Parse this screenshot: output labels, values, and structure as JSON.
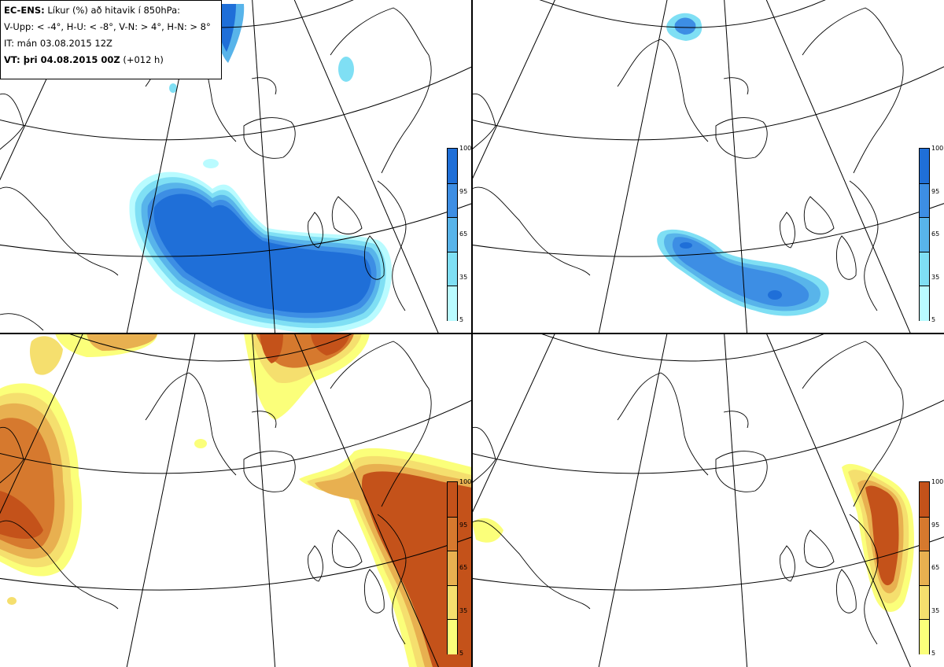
{
  "info": {
    "model": "EC-ENS:",
    "desc": "Líkur (%) að hitavik í 850hPa:",
    "classes": "V-Upp: < -4°, H-U: < -8°, V-N: > 4°, H-N: > 8°",
    "it": "IT: mán 03.08.2015 12Z",
    "vt_label": "VT: þri 04.08.2015 00Z",
    "vt_lead": "(+012 h)"
  },
  "colorbar": {
    "ticks": [
      "100",
      "95",
      "65",
      "35",
      "5"
    ],
    "cold_colors": [
      "#1f6fd8",
      "#3d8ee4",
      "#58b4ea",
      "#7fdff4",
      "#b9fbff"
    ],
    "warm_colors": [
      "#c4521a",
      "#d6792e",
      "#e8b050",
      "#f5df6e",
      "#fbff7a"
    ]
  },
  "panels": [
    {
      "id": "tl",
      "field": "V-Upp",
      "palette": "cold"
    },
    {
      "id": "tr",
      "field": "H-U",
      "palette": "cold"
    },
    {
      "id": "bl",
      "field": "V-N",
      "palette": "warm"
    },
    {
      "id": "br",
      "field": "H-N",
      "palette": "warm"
    }
  ]
}
